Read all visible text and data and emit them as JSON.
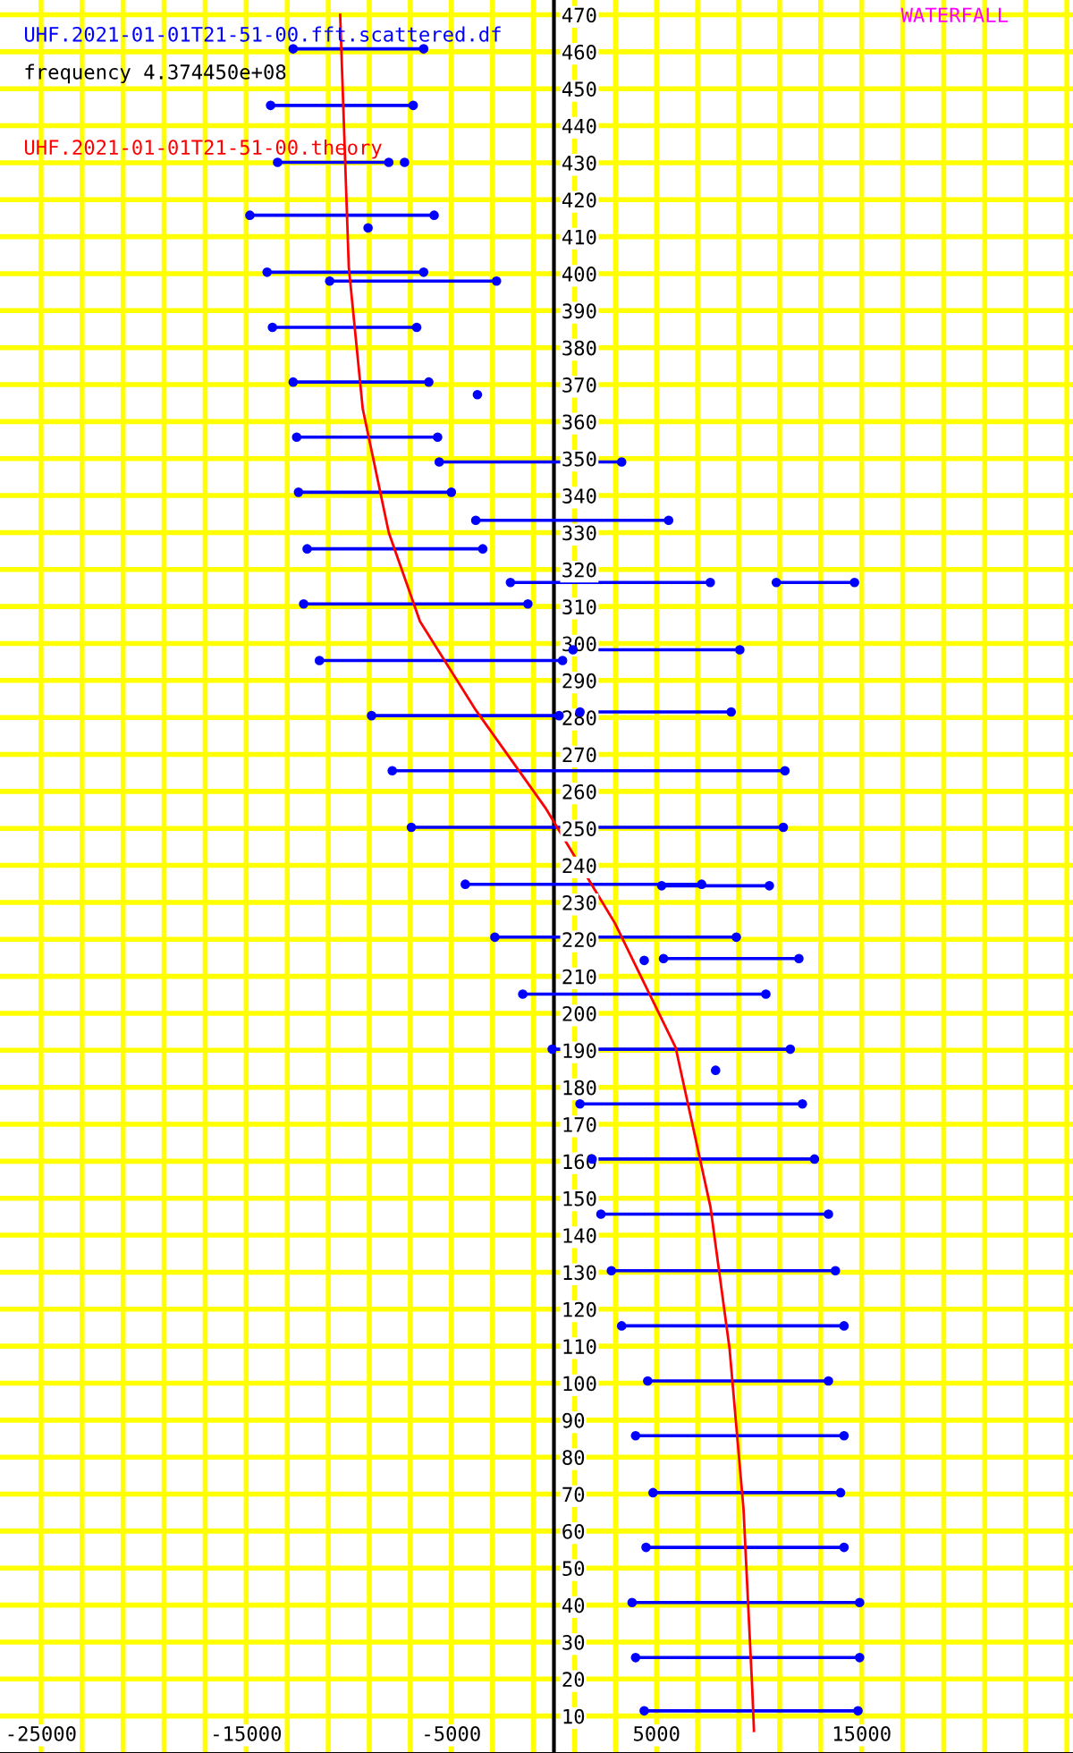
{
  "chart_data": {
    "type": "line",
    "title": "WATERFALL",
    "annotations": [
      "frequency 4.374450e+08"
    ],
    "legend": "top left",
    "grid": true,
    "xlim": [
      -27000,
      25300
    ],
    "ylim": [
      0,
      474
    ],
    "xticks": [
      {
        "value": -25000,
        "label": "-25000"
      },
      {
        "value": -23000,
        "label": null
      },
      {
        "value": -21000,
        "label": null
      },
      {
        "value": -19000,
        "label": null
      },
      {
        "value": -17000,
        "label": null
      },
      {
        "value": -15000,
        "label": "-15000"
      },
      {
        "value": -13000,
        "label": null
      },
      {
        "value": -11000,
        "label": null
      },
      {
        "value": -9000,
        "label": null
      },
      {
        "value": -7000,
        "label": null
      },
      {
        "value": -5000,
        "label": "-5000"
      },
      {
        "value": -3000,
        "label": null
      },
      {
        "value": -1000,
        "label": null
      },
      {
        "value": 1000,
        "label": null
      },
      {
        "value": 3000,
        "label": null
      },
      {
        "value": 5000,
        "label": "5000"
      },
      {
        "value": 7000,
        "label": null
      },
      {
        "value": 9000,
        "label": null
      },
      {
        "value": 11000,
        "label": null
      },
      {
        "value": 13000,
        "label": null
      },
      {
        "value": 15000,
        "label": "15000"
      },
      {
        "value": 17000,
        "label": null
      },
      {
        "value": 19000,
        "label": null
      },
      {
        "value": 21000,
        "label": null
      },
      {
        "value": 23000,
        "label": null
      },
      {
        "value": 25000,
        "label": null
      }
    ],
    "yticks": [
      10,
      20,
      30,
      40,
      50,
      60,
      70,
      80,
      90,
      100,
      110,
      120,
      130,
      140,
      150,
      160,
      170,
      180,
      190,
      200,
      210,
      220,
      230,
      240,
      250,
      260,
      270,
      280,
      290,
      300,
      310,
      320,
      330,
      340,
      350,
      360,
      370,
      380,
      390,
      400,
      410,
      420,
      430,
      440,
      450,
      460,
      470
    ],
    "series": [
      {
        "name": "UHF.2021-01-01T21-51-00.fft.scattered.df",
        "color": "#0000ff",
        "marker": "circle",
        "x": [
          4400,
          14820,
          null,
          3980,
          14900,
          null,
          3810,
          14900,
          null,
          4490,
          14140,
          null,
          4830,
          13970,
          null,
          3980,
          14140,
          null,
          4570,
          13380,
          null,
          3300,
          14140,
          null,
          2800,
          13720,
          null,
          2290,
          13380,
          null,
          1860,
          12700,
          null,
          1270,
          12110,
          null,
          -85,
          11520,
          null,
          -1520,
          10330,
          null,
          5340,
          11940,
          null,
          -2880,
          8890,
          null,
          -4320,
          7200,
          null,
          5250,
          10500,
          null,
          -6950,
          11180,
          null,
          -7880,
          11260,
          null,
          -8890,
          250,
          null,
          1270,
          8640,
          null,
          -11430,
          420,
          null,
          930,
          9060,
          null,
          -2120,
          7620,
          null,
          10840,
          14650,
          null,
          -12200,
          -1270,
          null,
          -12030,
          -3470,
          null,
          -3810,
          5590,
          null,
          -12450,
          -5000,
          null,
          -5590,
          3300,
          null,
          -12540,
          -5670,
          null,
          -12710,
          -6100,
          null,
          -13720,
          -6690,
          null,
          -13980,
          -6350,
          null,
          -10930,
          -2800,
          null,
          -14820,
          -5840,
          null,
          -13470,
          -8050,
          null,
          -13810,
          -6860,
          null,
          -12710,
          -6350
        ],
        "values": [
          11.4,
          11.4,
          null,
          25.8,
          25.8,
          null,
          40.7,
          40.7,
          null,
          55.6,
          55.6,
          null,
          70.4,
          70.4,
          null,
          85.8,
          85.8,
          null,
          100.6,
          100.6,
          null,
          115.5,
          115.5,
          null,
          130.4,
          130.4,
          null,
          145.7,
          145.7,
          null,
          160.6,
          160.6,
          null,
          175.5,
          175.5,
          null,
          190.3,
          190.3,
          null,
          205.2,
          205.2,
          null,
          214.8,
          214.8,
          null,
          220.6,
          220.6,
          null,
          234.9,
          234.9,
          null,
          234.5,
          234.5,
          null,
          250.3,
          250.3,
          null,
          265.6,
          265.6,
          null,
          280.5,
          280.5,
          null,
          281.5,
          281.5,
          null,
          295.4,
          295.4,
          null,
          298.3,
          298.3,
          null,
          316.5,
          316.5,
          null,
          316.5,
          316.5,
          null,
          310.7,
          310.7,
          null,
          325.6,
          325.6,
          null,
          333.3,
          333.3,
          null,
          340.9,
          340.9,
          null,
          349.1,
          349.1,
          null,
          355.8,
          355.8,
          null,
          370.7,
          370.7,
          null,
          385.5,
          385.5,
          null,
          400.4,
          400.4,
          null,
          398,
          398,
          null,
          415.8,
          415.8,
          null,
          430.1,
          430.1,
          null,
          445.5,
          445.5,
          null,
          460.8,
          460.8
        ]
      },
      {
        "type": "scatter",
        "color": "#0000ff",
        "marker": "circle",
        "x": [
          7880,
          4400,
          -3730,
          -9060,
          -7280
        ],
        "values": [
          184.6,
          214.3,
          367.3,
          412.4,
          430.1
        ]
      },
      {
        "name": "UHF.2021-01-01T21-51-00.theory",
        "color": "#ff0000",
        "marker": "none",
        "x": [
          -10420,
          -10000,
          -9320,
          -8050,
          -6530,
          -3810,
          -420,
          2970,
          5930,
          7630,
          8560,
          9240,
          9660,
          9750
        ],
        "values": [
          470,
          401.8,
          363.5,
          330,
          306,
          282,
          255.6,
          224.4,
          190.8,
          147.6,
          109.3,
          66,
          18,
          6
        ]
      }
    ]
  }
}
